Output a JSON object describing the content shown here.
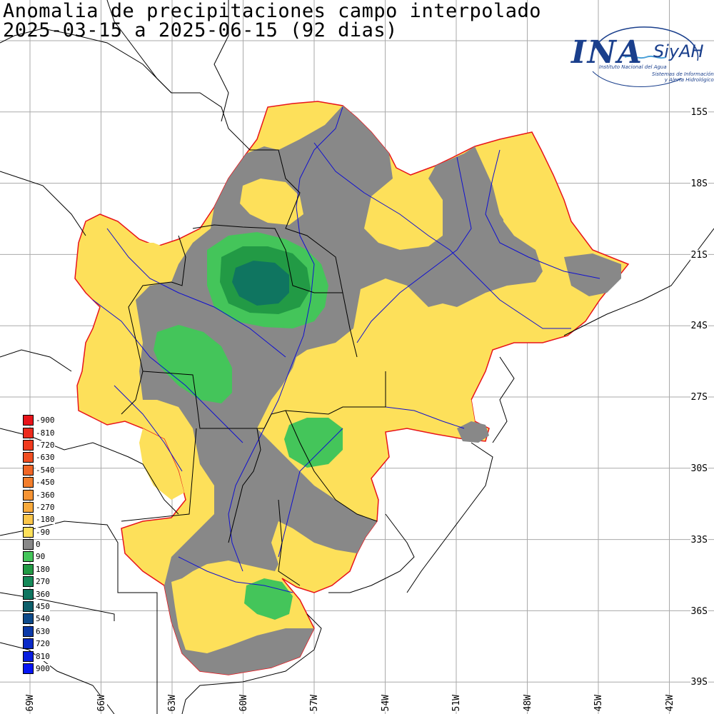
{
  "title": {
    "line1": "Anomalia de precipitaciones campo interpolado",
    "line2": "2025-03-15 a 2025-06-15 (92 dias)"
  },
  "logo": {
    "main": "INA",
    "siyah": "SiyAH",
    "sub1": "Instituto Nacional del Agua",
    "sub2a": "Sistemas de Información",
    "sub2b": "y Alerta Hidrológico"
  },
  "lat_labels": [
    "15S",
    "18S",
    "21S",
    "24S",
    "27S",
    "30S",
    "33S",
    "36S",
    "39S"
  ],
  "lon_labels": [
    "69W",
    "66W",
    "63W",
    "60W",
    "57W",
    "54W",
    "51W",
    "48W",
    "45W",
    "42W"
  ],
  "legend": [
    {
      "label": "-900",
      "color": "#e8141a"
    },
    {
      "label": "-810",
      "color": "#ec2a1c"
    },
    {
      "label": "-720",
      "color": "#f03a1e"
    },
    {
      "label": "-630",
      "color": "#f04e22"
    },
    {
      "label": "-540",
      "color": "#f06626"
    },
    {
      "label": "-450",
      "color": "#f37e2c"
    },
    {
      "label": "-360",
      "color": "#f69434"
    },
    {
      "label": "-270",
      "color": "#f8aa3c"
    },
    {
      "label": "-180",
      "color": "#fac64a"
    },
    {
      "label": "-90",
      "color": "#fde05a"
    },
    {
      "label": "0",
      "color": "#888888"
    },
    {
      "label": "90",
      "color": "#44c55a"
    },
    {
      "label": "180",
      "color": "#229a45"
    },
    {
      "label": "270",
      "color": "#168a5a"
    },
    {
      "label": "360",
      "color": "#0f7560"
    },
    {
      "label": "450",
      "color": "#0d5f6a"
    },
    {
      "label": "540",
      "color": "#0d4a8a"
    },
    {
      "label": "630",
      "color": "#0c3aa8"
    },
    {
      "label": "720",
      "color": "#0a2ac8"
    },
    {
      "label": "810",
      "color": "#081ee0"
    },
    {
      "label": "900",
      "color": "#0616f5"
    }
  ],
  "colors": {
    "dry": "#fde05a",
    "normal": "#888888",
    "wet1": "#44c55a",
    "wet2": "#229a45",
    "wet3": "#0f7560",
    "basin_outline": "#e8141a",
    "rivers": "#1010d0",
    "borders": "#000000",
    "grid": "#aaaaaa"
  }
}
